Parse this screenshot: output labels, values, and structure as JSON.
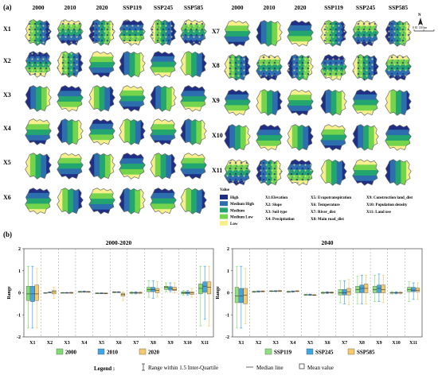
{
  "panel_a": {
    "label": "(a)",
    "left_columns": [
      "2000",
      "2010",
      "2020",
      "SSP119",
      "SSP245",
      "SSP585"
    ],
    "right_columns": [
      "2000",
      "2010",
      "2020",
      "SSP119",
      "SSP245",
      "SSP585"
    ],
    "left_rows": [
      "X1",
      "X2",
      "X3",
      "X4",
      "X5",
      "X6"
    ],
    "right_rows": [
      "X7",
      "X8",
      "X9",
      "X10",
      "X11"
    ],
    "scale_text": "0  65  130 km",
    "value_legend": {
      "title": "Value",
      "items": [
        {
          "label": "High",
          "color": "#1f2f86"
        },
        {
          "label": "Medium High",
          "color": "#2d6fae"
        },
        {
          "label": "Medium",
          "color": "#22a56e"
        },
        {
          "label": "Medium Low",
          "color": "#74d44c"
        },
        {
          "label": "Low",
          "color": "#f7f08a"
        }
      ]
    },
    "factor_legend": [
      [
        "X1:Elevation",
        "X2: Slope",
        "X3: Soil type",
        "X4: Precipitation"
      ],
      [
        "X5: Evapotranspiration",
        "X6: Temperature",
        "X7: River_dist",
        "X8: Main road_dist"
      ],
      [
        "X9: Construction land_dist",
        "X10: Population density",
        "X11: Land use"
      ]
    ]
  },
  "panel_b": {
    "label": "(b)",
    "legend_prefix": "Legend :",
    "legend_items": [
      "Range within 1.5 Inter-Quartile",
      "Median line",
      "Mean value"
    ]
  },
  "chart_data": [
    {
      "type": "box",
      "title": "2000-2020",
      "ylabel": "Range",
      "ylim": [
        -2,
        2
      ],
      "yticks": [
        -2,
        -1,
        0,
        1,
        2
      ],
      "categories": [
        "X1",
        "X2",
        "X3",
        "X4",
        "X5",
        "X6",
        "X7",
        "X8",
        "X9",
        "X10",
        "X11"
      ],
      "series": [
        {
          "name": "2000",
          "color": "#7ede6f",
          "boxes": [
            [
              -1.6,
              -0.35,
              -0.05,
              0.3,
              1.2
            ],
            [
              0,
              0,
              0,
              0,
              0
            ],
            [
              -0.02,
              -0.01,
              0,
              0.01,
              0.02
            ],
            [
              0.02,
              0.03,
              0.05,
              0.06,
              0.07
            ],
            [
              -0.04,
              -0.03,
              -0.02,
              -0.01,
              0
            ],
            [
              0,
              0.02,
              0.03,
              0.04,
              0.05
            ],
            [
              -0.05,
              -0.02,
              0,
              0.02,
              0.05
            ],
            [
              -0.2,
              0.05,
              0.15,
              0.25,
              0.55
            ],
            [
              0.05,
              0.15,
              0.25,
              0.3,
              0.45
            ],
            [
              -0.1,
              -0.05,
              0,
              0.05,
              0.1
            ],
            [
              -1.5,
              -0.05,
              0.2,
              0.4,
              1.2
            ]
          ]
        },
        {
          "name": "2010",
          "color": "#3fa6e6",
          "boxes": [
            [
              -1.6,
              -0.4,
              -0.05,
              0.3,
              1.2
            ],
            [
              0,
              0.01,
              0.02,
              0.03,
              0.04
            ],
            [
              -0.02,
              -0.01,
              0,
              0.01,
              0.02
            ],
            [
              0.03,
              0.04,
              0.05,
              0.06,
              0.08
            ],
            [
              -0.04,
              -0.03,
              -0.02,
              -0.01,
              0
            ],
            [
              0.01,
              0.02,
              0.03,
              0.04,
              0.05
            ],
            [
              -0.05,
              -0.02,
              0,
              0.02,
              0.05
            ],
            [
              -0.25,
              0.05,
              0.15,
              0.25,
              0.55
            ],
            [
              0.05,
              0.12,
              0.2,
              0.28,
              0.45
            ],
            [
              -0.1,
              -0.05,
              0,
              0.05,
              0.1
            ],
            [
              -1.2,
              0.02,
              0.3,
              0.5,
              1.2
            ]
          ]
        },
        {
          "name": "2020",
          "color": "#f6c96a",
          "boxes": [
            [
              -1.6,
              -0.35,
              -0.05,
              0.35,
              1.1
            ],
            [
              -0.25,
              -0.05,
              0.05,
              0.1,
              0.25
            ],
            [
              -0.03,
              -0.02,
              0,
              0.02,
              0.03
            ],
            [
              0.02,
              0.03,
              0.04,
              0.06,
              0.07
            ],
            [
              -0.05,
              -0.04,
              -0.03,
              -0.01,
              0
            ],
            [
              -0.35,
              -0.15,
              -0.08,
              -0.02,
              0.05
            ],
            [
              -0.05,
              -0.02,
              0,
              0.02,
              0.05
            ],
            [
              -0.2,
              0,
              0.1,
              0.2,
              0.5
            ],
            [
              0,
              0.1,
              0.15,
              0.25,
              0.45
            ],
            [
              -0.2,
              -0.08,
              0,
              0.05,
              0.2
            ],
            [
              -1.5,
              -0.05,
              0.25,
              0.5,
              1.2
            ]
          ]
        }
      ]
    },
    {
      "type": "box",
      "title": "2040",
      "ylabel": "Range",
      "ylim": [
        -2,
        2
      ],
      "yticks": [
        -2,
        -1,
        0,
        1,
        2
      ],
      "categories": [
        "X1",
        "X2",
        "X3",
        "X4",
        "X5",
        "X6",
        "X7",
        "X8",
        "X9",
        "X10",
        "X11"
      ],
      "series": [
        {
          "name": "SSP119",
          "color": "#8ee27e",
          "boxes": [
            [
              -1.6,
              -0.45,
              -0.15,
              0.25,
              1.2
            ],
            [
              0.02,
              0.04,
              0.05,
              0.06,
              0.08
            ],
            [
              0.05,
              0.07,
              0.08,
              0.09,
              0.1
            ],
            [
              0.02,
              0.04,
              0.05,
              0.06,
              0.08
            ],
            [
              -0.12,
              -0.1,
              -0.09,
              -0.08,
              -0.06
            ],
            [
              -0.05,
              -0.02,
              0,
              0.02,
              0.05
            ],
            [
              -0.45,
              -0.1,
              0,
              0.15,
              0.55
            ],
            [
              -0.5,
              0,
              0.15,
              0.3,
              0.75
            ],
            [
              -0.4,
              0,
              0.15,
              0.3,
              0.8
            ],
            [
              -0.06,
              -0.02,
              0,
              0.02,
              0.06
            ],
            [
              -0.4,
              0.05,
              0.15,
              0.25,
              0.5
            ]
          ]
        },
        {
          "name": "SSP245",
          "color": "#3fa6e6",
          "boxes": [
            [
              -1.6,
              -0.45,
              -0.15,
              0.2,
              1.2
            ],
            [
              0.03,
              0.05,
              0.06,
              0.07,
              0.09
            ],
            [
              0.05,
              0.07,
              0.08,
              0.09,
              0.1
            ],
            [
              0.03,
              0.05,
              0.06,
              0.07,
              0.09
            ],
            [
              -0.12,
              -0.1,
              -0.09,
              -0.08,
              -0.06
            ],
            [
              -0.04,
              -0.01,
              0.01,
              0.03,
              0.05
            ],
            [
              -0.5,
              -0.1,
              0,
              0.15,
              0.55
            ],
            [
              -0.5,
              0,
              0.2,
              0.35,
              0.8
            ],
            [
              -0.4,
              0,
              0.2,
              0.35,
              0.85
            ],
            [
              -0.05,
              -0.02,
              0,
              0.02,
              0.05
            ],
            [
              -0.3,
              0.05,
              0.12,
              0.25,
              0.45
            ]
          ]
        },
        {
          "name": "SSP585",
          "color": "#f6c96a",
          "boxes": [
            [
              -1.4,
              -0.5,
              -0.1,
              0.2,
              1.1
            ],
            [
              0.03,
              0.05,
              0.07,
              0.08,
              0.1
            ],
            [
              0.05,
              0.07,
              0.08,
              0.1,
              0.12
            ],
            [
              0.04,
              0.06,
              0.07,
              0.09,
              0.11
            ],
            [
              -0.13,
              -0.11,
              -0.1,
              -0.09,
              -0.07
            ],
            [
              -0.04,
              -0.01,
              0.01,
              0.03,
              0.05
            ],
            [
              -0.55,
              -0.1,
              0.05,
              0.2,
              0.6
            ],
            [
              -0.5,
              0,
              0.2,
              0.4,
              0.8
            ],
            [
              -0.45,
              0,
              0.15,
              0.35,
              0.8
            ],
            [
              -0.06,
              -0.02,
              0,
              0.02,
              0.06
            ],
            [
              -0.3,
              0.05,
              0.12,
              0.22,
              0.45
            ]
          ]
        }
      ]
    }
  ]
}
